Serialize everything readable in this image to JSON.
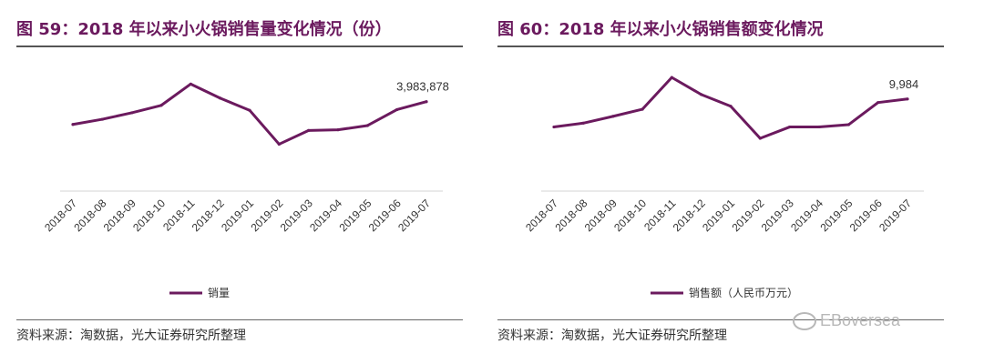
{
  "charts": [
    {
      "title": "图 59：2018 年以来小火锅销售量变化情况（份）",
      "source": "资料来源：淘数据，光大证券研究所整理"
    },
    {
      "title": "图 60：2018 年以来小火锅销售额变化情况",
      "source": "资料来源：淘数据，光大证券研究所整理"
    }
  ],
  "watermark": "EBoversea",
  "chart_data": [
    {
      "type": "line",
      "categories": [
        "2018-07",
        "2018-08",
        "2018-09",
        "2018-10",
        "2018-11",
        "2018-12",
        "2019-01",
        "2019-02",
        "2019-03",
        "2019-04",
        "2019-05",
        "2019-06",
        "2019-07"
      ],
      "series": [
        {
          "name": "销量",
          "values": [
            2970000,
            3200000,
            3490000,
            3820000,
            4770000,
            4140000,
            3600000,
            2090000,
            2700000,
            2730000,
            2920000,
            3630000,
            3983878
          ],
          "color": "#6b1a5e"
        }
      ],
      "annotations": [
        {
          "index": 12,
          "text": "3,983,878"
        }
      ],
      "ylim": [
        0,
        6000000
      ],
      "grid": false,
      "legend_position": "bottom-center"
    },
    {
      "type": "line",
      "categories": [
        "2018-07",
        "2018-08",
        "2018-09",
        "2018-10",
        "2018-11",
        "2018-12",
        "2019-01",
        "2019-02",
        "2019-03",
        "2019-04",
        "2019-05",
        "2019-06",
        "2019-07"
      ],
      "series": [
        {
          "name": "销售额（人民币万元）",
          "values": [
            6950,
            7370,
            8100,
            8870,
            12320,
            10470,
            9200,
            5720,
            6950,
            6960,
            7200,
            9600,
            9984
          ],
          "color": "#6b1a5e"
        }
      ],
      "annotations": [
        {
          "index": 12,
          "text": "9,984"
        }
      ],
      "ylim": [
        0,
        14600
      ],
      "grid": false,
      "legend_position": "bottom-center"
    }
  ]
}
